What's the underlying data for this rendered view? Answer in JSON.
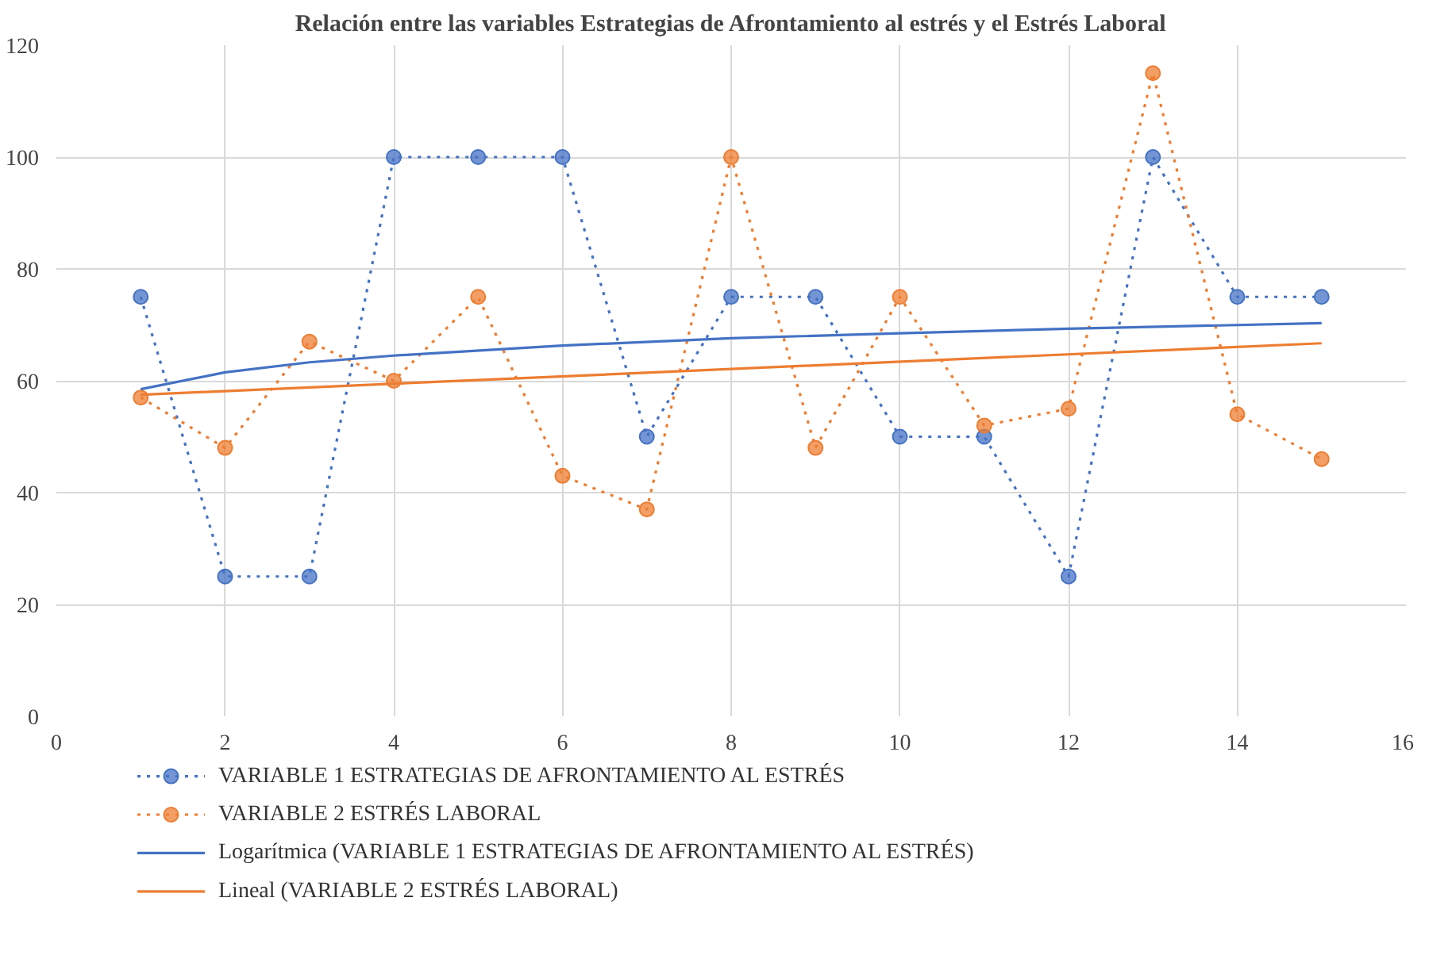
{
  "chart_data": {
    "type": "line",
    "title": "Relación entre las variables Estrategias de Afrontamiento al estrés y el Estrés Laboral",
    "x": [
      1,
      2,
      3,
      4,
      5,
      6,
      7,
      8,
      9,
      10,
      11,
      12,
      13,
      14,
      15
    ],
    "series": [
      {
        "name": "VARIABLE 1 ESTRATEGIAS DE AFRONTAMIENTO AL ESTRÉS",
        "color": "#4472c4",
        "marker": "circle",
        "line_style": "dotted",
        "values": [
          75,
          25,
          25,
          100,
          100,
          100,
          50,
          75,
          75,
          50,
          50,
          25,
          100,
          75,
          75
        ]
      },
      {
        "name": "VARIABLE 2 ESTRÉS LABORAL",
        "color": "#ed7d31",
        "marker": "circle",
        "line_style": "dotted",
        "values": [
          57,
          48,
          67,
          60,
          75,
          43,
          37,
          100,
          48,
          75,
          52,
          55,
          115,
          54,
          46
        ]
      },
      {
        "name": "Logarítmica (VARIABLE 1 ESTRATEGIAS DE AFRONTAMIENTO AL ESTRÉS)",
        "color": "#4472c4",
        "marker": "none",
        "line_style": "solid",
        "x": [
          1,
          2,
          3,
          4,
          6,
          8,
          10,
          12,
          15
        ],
        "values": [
          58.5,
          61.5,
          63.3,
          64.5,
          66.3,
          67.6,
          68.5,
          69.3,
          70.3
        ]
      },
      {
        "name": "Lineal (VARIABLE 2 ESTRÉS LABORAL)",
        "color": "#ed7d31",
        "marker": "none",
        "line_style": "solid",
        "x": [
          1,
          15
        ],
        "values": [
          57.5,
          66.7
        ]
      }
    ],
    "xlim": [
      0,
      16
    ],
    "xticks": [
      0,
      2,
      4,
      6,
      8,
      10,
      12,
      14,
      16
    ],
    "ylim": [
      0,
      120
    ],
    "yticks": [
      0,
      20,
      40,
      60,
      80,
      100,
      120
    ],
    "grid": true,
    "legend": "bottom"
  }
}
